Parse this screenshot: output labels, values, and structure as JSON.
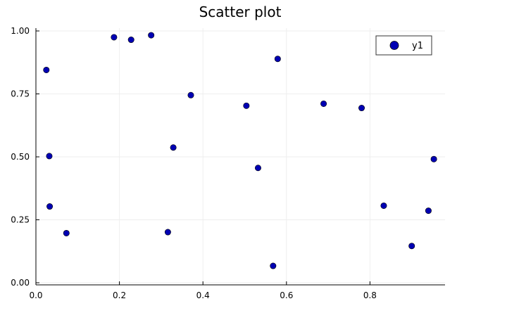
{
  "chart_data": {
    "type": "scatter",
    "title": "Scatter plot",
    "xlabel": "",
    "ylabel": "",
    "xlim": [
      0.0,
      0.97
    ],
    "ylim": [
      0.0,
      1.0
    ],
    "x_ticks": [
      {
        "value": 0.0,
        "label": "0.0"
      },
      {
        "value": 0.2,
        "label": "0.2"
      },
      {
        "value": 0.4,
        "label": "0.4"
      },
      {
        "value": 0.6,
        "label": "0.6"
      },
      {
        "value": 0.8,
        "label": "0.8"
      }
    ],
    "y_ticks": [
      {
        "value": 0.0,
        "label": "0.00"
      },
      {
        "value": 0.25,
        "label": "0.25"
      },
      {
        "value": 0.5,
        "label": "0.50"
      },
      {
        "value": 0.75,
        "label": "0.75"
      },
      {
        "value": 1.0,
        "label": "1.00"
      }
    ],
    "grid": true,
    "legend_position": "top-right",
    "series": [
      {
        "name": "y1",
        "color": "#0000b3",
        "points": [
          {
            "x": 0.025,
            "y": 0.845
          },
          {
            "x": 0.032,
            "y": 0.503
          },
          {
            "x": 0.033,
            "y": 0.303
          },
          {
            "x": 0.073,
            "y": 0.197
          },
          {
            "x": 0.187,
            "y": 0.975
          },
          {
            "x": 0.228,
            "y": 0.965
          },
          {
            "x": 0.276,
            "y": 0.983
          },
          {
            "x": 0.316,
            "y": 0.201
          },
          {
            "x": 0.329,
            "y": 0.537
          },
          {
            "x": 0.371,
            "y": 0.745
          },
          {
            "x": 0.504,
            "y": 0.703
          },
          {
            "x": 0.532,
            "y": 0.456
          },
          {
            "x": 0.568,
            "y": 0.067
          },
          {
            "x": 0.579,
            "y": 0.889
          },
          {
            "x": 0.689,
            "y": 0.711
          },
          {
            "x": 0.78,
            "y": 0.694
          },
          {
            "x": 0.833,
            "y": 0.306
          },
          {
            "x": 0.9,
            "y": 0.146
          },
          {
            "x": 0.94,
            "y": 0.286
          },
          {
            "x": 0.953,
            "y": 0.491
          }
        ]
      }
    ]
  }
}
